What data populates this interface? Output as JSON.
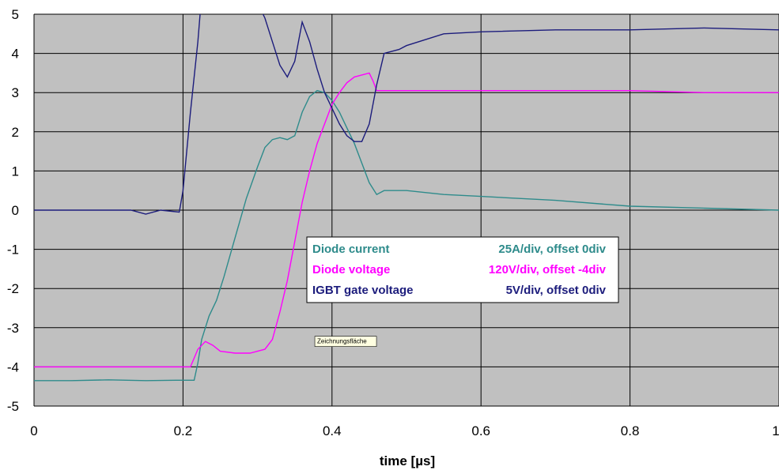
{
  "chart_data": {
    "type": "line",
    "xlabel": "time [µs]",
    "ylabel": "",
    "xlim": [
      0,
      1
    ],
    "ylim": [
      -5,
      5
    ],
    "x_ticks": [
      "0",
      "0.2",
      "0.4",
      "0.6",
      "0.8",
      "1"
    ],
    "y_ticks": [
      "5",
      "4",
      "3",
      "2",
      "1",
      "0",
      "-1",
      "-2",
      "-3",
      "-4",
      "-5"
    ],
    "grid": true,
    "plot_background": "#c0c0c0",
    "legend_position": "center-right",
    "series": [
      {
        "name": "Diode current",
        "legend_value": "25A/div, offset  0div",
        "color": "#2e8b8b",
        "points": [
          [
            0,
            -4.35
          ],
          [
            0.05,
            -4.35
          ],
          [
            0.1,
            -4.33
          ],
          [
            0.15,
            -4.35
          ],
          [
            0.19,
            -4.34
          ],
          [
            0.215,
            -4.34
          ],
          [
            0.22,
            -3.9
          ],
          [
            0.225,
            -3.3
          ],
          [
            0.235,
            -2.7
          ],
          [
            0.245,
            -2.3
          ],
          [
            0.255,
            -1.7
          ],
          [
            0.27,
            -0.7
          ],
          [
            0.285,
            0.3
          ],
          [
            0.3,
            1.1
          ],
          [
            0.31,
            1.6
          ],
          [
            0.32,
            1.8
          ],
          [
            0.33,
            1.85
          ],
          [
            0.34,
            1.8
          ],
          [
            0.35,
            1.9
          ],
          [
            0.36,
            2.5
          ],
          [
            0.37,
            2.9
          ],
          [
            0.38,
            3.05
          ],
          [
            0.39,
            3.0
          ],
          [
            0.4,
            2.8
          ],
          [
            0.41,
            2.5
          ],
          [
            0.42,
            2.1
          ],
          [
            0.43,
            1.7
          ],
          [
            0.44,
            1.2
          ],
          [
            0.45,
            0.7
          ],
          [
            0.46,
            0.4
          ],
          [
            0.47,
            0.5
          ],
          [
            0.5,
            0.5
          ],
          [
            0.55,
            0.4
          ],
          [
            0.6,
            0.35
          ],
          [
            0.7,
            0.25
          ],
          [
            0.8,
            0.1
          ],
          [
            0.9,
            0.05
          ],
          [
            1.0,
            0.0
          ]
        ]
      },
      {
        "name": "Diode voltage",
        "legend_value": "120V/div, offset -4div",
        "color": "#ff00ff",
        "points": [
          [
            0,
            -4.0
          ],
          [
            0.05,
            -4.0
          ],
          [
            0.1,
            -4.0
          ],
          [
            0.15,
            -4.0
          ],
          [
            0.2,
            -4.0
          ],
          [
            0.21,
            -4.0
          ],
          [
            0.22,
            -3.55
          ],
          [
            0.23,
            -3.35
          ],
          [
            0.24,
            -3.45
          ],
          [
            0.25,
            -3.6
          ],
          [
            0.27,
            -3.65
          ],
          [
            0.29,
            -3.65
          ],
          [
            0.31,
            -3.55
          ],
          [
            0.32,
            -3.3
          ],
          [
            0.33,
            -2.6
          ],
          [
            0.34,
            -1.8
          ],
          [
            0.35,
            -0.8
          ],
          [
            0.36,
            0.2
          ],
          [
            0.37,
            1.0
          ],
          [
            0.38,
            1.7
          ],
          [
            0.39,
            2.2
          ],
          [
            0.4,
            2.7
          ],
          [
            0.41,
            3.0
          ],
          [
            0.42,
            3.25
          ],
          [
            0.43,
            3.4
          ],
          [
            0.44,
            3.45
          ],
          [
            0.45,
            3.5
          ],
          [
            0.455,
            3.3
          ],
          [
            0.46,
            3.05
          ],
          [
            0.5,
            3.05
          ],
          [
            0.6,
            3.05
          ],
          [
            0.7,
            3.05
          ],
          [
            0.8,
            3.05
          ],
          [
            0.9,
            3.0
          ],
          [
            1.0,
            3.0
          ]
        ]
      },
      {
        "name": "IGBT gate voltage",
        "legend_value": "5V/div, offset  0div",
        "color": "#1c1c7c",
        "points": [
          [
            0,
            0.0
          ],
          [
            0.05,
            0.0
          ],
          [
            0.1,
            0.0
          ],
          [
            0.13,
            0.0
          ],
          [
            0.15,
            -0.1
          ],
          [
            0.17,
            0.0
          ],
          [
            0.195,
            -0.05
          ],
          [
            0.2,
            0.5
          ],
          [
            0.205,
            1.5
          ],
          [
            0.21,
            2.5
          ],
          [
            0.22,
            4.3
          ],
          [
            0.225,
            5.5
          ],
          [
            0.3,
            5.3
          ],
          [
            0.31,
            4.9
          ],
          [
            0.32,
            4.3
          ],
          [
            0.33,
            3.7
          ],
          [
            0.34,
            3.4
          ],
          [
            0.35,
            3.8
          ],
          [
            0.36,
            4.8
          ],
          [
            0.37,
            4.3
          ],
          [
            0.38,
            3.6
          ],
          [
            0.39,
            3.0
          ],
          [
            0.4,
            2.6
          ],
          [
            0.41,
            2.2
          ],
          [
            0.42,
            1.9
          ],
          [
            0.43,
            1.75
          ],
          [
            0.44,
            1.75
          ],
          [
            0.45,
            2.2
          ],
          [
            0.46,
            3.2
          ],
          [
            0.47,
            4.0
          ],
          [
            0.49,
            4.1
          ],
          [
            0.5,
            4.2
          ],
          [
            0.55,
            4.5
          ],
          [
            0.6,
            4.55
          ],
          [
            0.7,
            4.6
          ],
          [
            0.8,
            4.6
          ],
          [
            0.9,
            4.65
          ],
          [
            1.0,
            4.6
          ]
        ]
      }
    ],
    "annotations": [
      {
        "text": "Zeichnungsfläche",
        "x": 0.43,
        "y": -3.4
      }
    ]
  }
}
